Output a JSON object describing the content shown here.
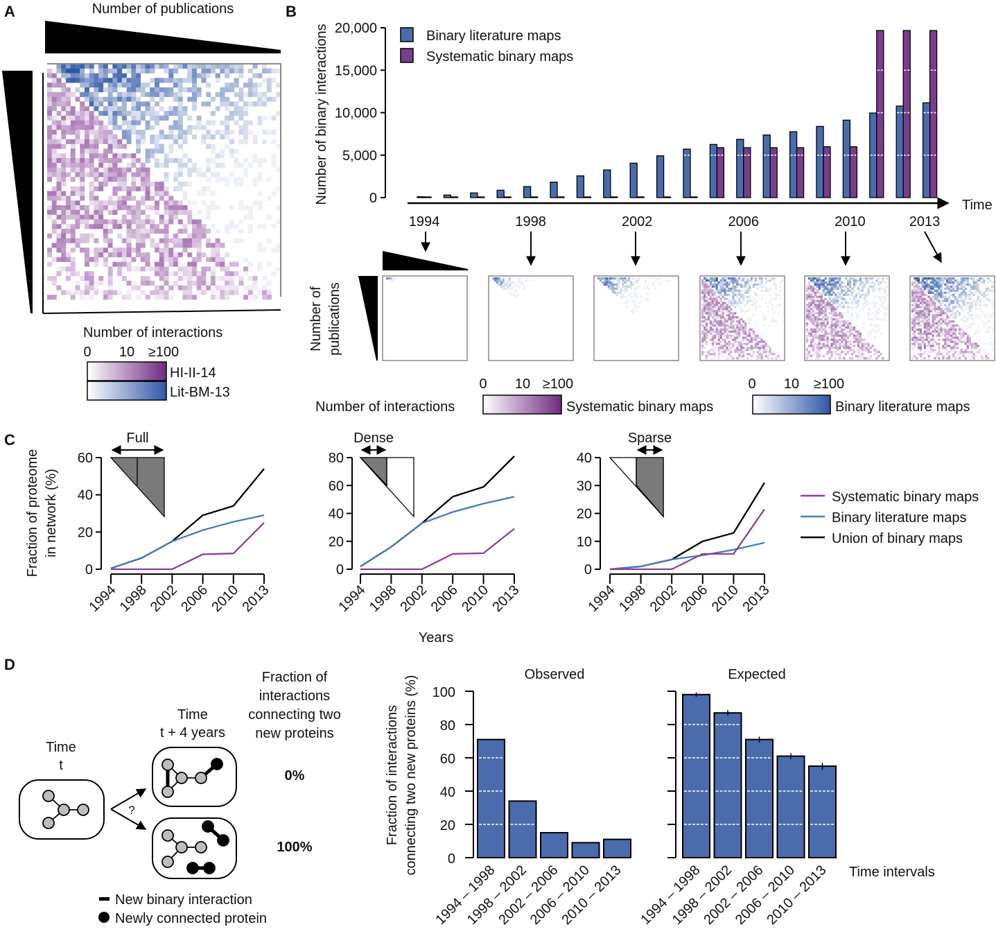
{
  "colors": {
    "literature": "#4a6cad",
    "systematic": "#7a3d8c",
    "lit_line": "#4a78c0",
    "sys_line": "#8b3f9e",
    "union_line": "#000000",
    "gray_node": "#bdbdbd",
    "inset_gray": "#7a7a7a"
  },
  "panelA": {
    "label": "A",
    "top_wedge_label": "Number of publications",
    "colorbar_title": "Number of interactions",
    "colorbar_ticks": [
      "0",
      "10",
      "≥100"
    ],
    "colorbar_labels": [
      "HI-II-14",
      "Lit-BM-13"
    ]
  },
  "panelB": {
    "label": "B",
    "snapshot_years": [
      "1994",
      "1998",
      "2002",
      "2006",
      "2010",
      "2013"
    ],
    "snapshot_ylabel": [
      "Number of",
      "publications"
    ],
    "colorbar_title": "Number of interactions",
    "colorbar_ticks": [
      "0",
      "10",
      "≥100"
    ],
    "colorbar_labels": [
      "Systematic binary maps",
      "Binary literature maps"
    ]
  },
  "panelC": {
    "label": "C",
    "ylabel": [
      "Fraction of proteome",
      "in network (%)"
    ],
    "xlabel": "Years",
    "legend": [
      "Systematic binary maps",
      "Binary literature maps",
      "Union of binary maps"
    ]
  },
  "panelD": {
    "label": "D",
    "time_t": [
      "Time",
      "t"
    ],
    "time_t4": [
      "Time",
      "t + 4 years"
    ],
    "question": "?",
    "fraction_header": [
      "Fraction of",
      "interactions",
      "connecting two",
      "new proteins"
    ],
    "outcomes": [
      "0%",
      "100%"
    ],
    "legend": [
      "New binary interaction",
      "Newly connected protein"
    ],
    "ylabel": [
      "Fraction of interactions",
      "connecting two new proteins (%)"
    ],
    "xlabel": "Time intervals"
  },
  "chart_data": [
    {
      "type": "bar",
      "panel": "B",
      "ylabel": "Number of binary interactions",
      "xlabel": "Time",
      "categories": [
        "1994",
        "1995",
        "1996",
        "1997",
        "1998",
        "1999",
        "2000",
        "2001",
        "2002",
        "2003",
        "2004",
        "2005",
        "2006",
        "2007",
        "2008",
        "2009",
        "2010",
        "2011",
        "2012",
        "2013"
      ],
      "xtick_labels": [
        "1994",
        "1998",
        "2002",
        "2006",
        "2010",
        "2013"
      ],
      "ylim": [
        0,
        20000
      ],
      "yticks": [
        0,
        5000,
        10000,
        15000,
        20000
      ],
      "ytick_labels": [
        "0",
        "5,000",
        "10,000",
        "15,000",
        "20,000"
      ],
      "legend": "top-left",
      "series": [
        {
          "name": "Binary literature maps",
          "values": [
            100,
            300,
            550,
            870,
            1300,
            1820,
            2560,
            3260,
            4050,
            4920,
            5710,
            6260,
            6860,
            7370,
            7760,
            8380,
            9120,
            9960,
            10780,
            11160
          ]
        },
        {
          "name": "Systematic binary maps",
          "values": [
            0,
            0,
            0,
            0,
            0,
            0,
            0,
            0,
            0,
            0,
            0,
            5880,
            5880,
            5880,
            5880,
            5990,
            5990,
            19670,
            19670,
            19670
          ]
        }
      ]
    },
    {
      "type": "line",
      "panel": "C",
      "inset_title": "Full",
      "x": [
        "1994",
        "1998",
        "2002",
        "2006",
        "2010",
        "2013"
      ],
      "ylim": [
        0,
        60
      ],
      "yticks": [
        0,
        20,
        40,
        60
      ],
      "series": [
        {
          "name": "Systematic binary maps",
          "values": [
            0,
            0,
            0,
            8,
            8.5,
            25
          ]
        },
        {
          "name": "Binary literature maps",
          "values": [
            0.5,
            6,
            15,
            21,
            25.5,
            29
          ]
        },
        {
          "name": "Union of binary maps",
          "values": [
            0.5,
            6,
            15,
            29,
            34,
            54
          ]
        }
      ]
    },
    {
      "type": "line",
      "panel": "C",
      "inset_title": "Dense",
      "x": [
        "1994",
        "1998",
        "2002",
        "2006",
        "2010",
        "2013"
      ],
      "ylim": [
        0,
        80
      ],
      "yticks": [
        0,
        20,
        40,
        60,
        80
      ],
      "series": [
        {
          "name": "Systematic binary maps",
          "values": [
            0,
            0,
            0,
            11,
            11.5,
            29
          ]
        },
        {
          "name": "Binary literature maps",
          "values": [
            2,
            16,
            33,
            41,
            47,
            52
          ]
        },
        {
          "name": "Union of binary maps",
          "values": [
            2,
            16,
            33,
            52,
            59,
            81
          ]
        }
      ]
    },
    {
      "type": "line",
      "panel": "C",
      "inset_title": "Sparse",
      "x": [
        "1994",
        "1998",
        "2002",
        "2006",
        "2010",
        "2013"
      ],
      "ylim": [
        0,
        40
      ],
      "yticks": [
        0,
        10,
        20,
        30,
        40
      ],
      "series": [
        {
          "name": "Systematic binary maps",
          "values": [
            0,
            0,
            0,
            5.5,
            5.5,
            21.5
          ]
        },
        {
          "name": "Binary literature maps",
          "values": [
            0,
            1,
            3.5,
            5,
            7,
            9.5
          ]
        },
        {
          "name": "Union of binary maps",
          "values": [
            0,
            1,
            3.5,
            10,
            13,
            31
          ]
        }
      ]
    },
    {
      "type": "bar",
      "panel": "D",
      "title": "Observed",
      "categories": [
        "1994 – 1998",
        "1998 – 2002",
        "2002 – 2006",
        "2006 – 2010",
        "2010 – 2013"
      ],
      "values": [
        71,
        34,
        15,
        9,
        11
      ],
      "ylim": [
        0,
        100
      ],
      "yticks": [
        0,
        20,
        40,
        60,
        80,
        100
      ]
    },
    {
      "type": "bar",
      "panel": "D",
      "title": "Expected",
      "categories": [
        "1994 – 1998",
        "1998 – 2002",
        "2002 – 2006",
        "2006 – 2010",
        "2010 – 2013"
      ],
      "values": [
        98,
        87,
        71,
        61,
        55
      ],
      "errors": [
        0.5,
        0.8,
        0.9,
        0.9,
        1.2
      ],
      "ylim": [
        0,
        100
      ],
      "yticks": [
        0,
        20,
        40,
        60,
        80,
        100
      ]
    }
  ]
}
